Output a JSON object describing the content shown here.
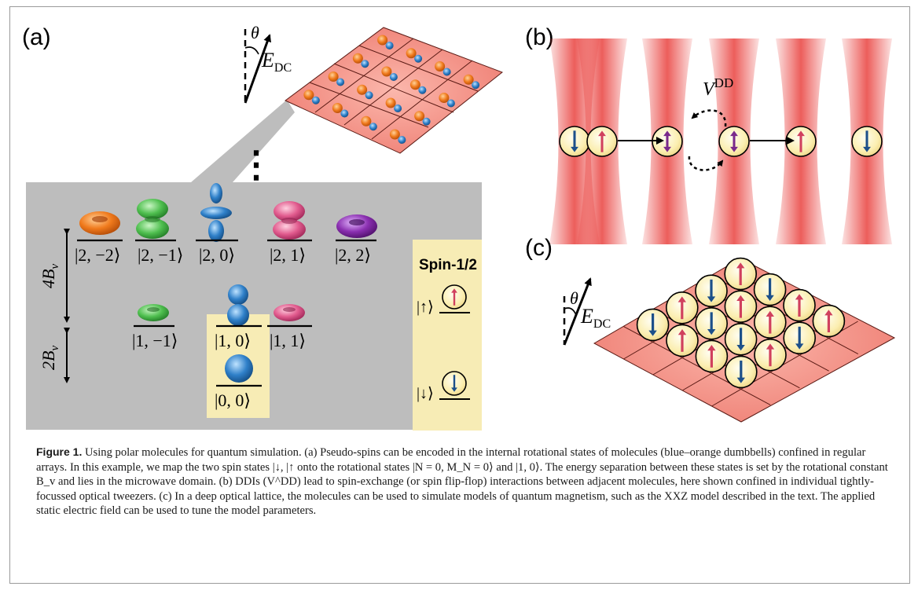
{
  "panels": {
    "a_label": "(a)",
    "b_label": "(b)",
    "c_label": "(c)"
  },
  "field": {
    "angle_symbol": "θ",
    "field_symbol": "E",
    "field_subscript": "DC"
  },
  "energy_levels": {
    "ellipsis": "⋮",
    "gap_upper": "4B",
    "gap_lower": "2B",
    "gap_subscript": "v",
    "n2_states": [
      "|2, −2⟩",
      "|2, −1⟩",
      "|2, 0⟩",
      "|2, 1⟩",
      "|2, 2⟩"
    ],
    "n1_states": [
      "|1, −1⟩",
      "|1, 0⟩",
      "|1, 1⟩"
    ],
    "n0_states": [
      "|0, 0⟩"
    ]
  },
  "spin_box": {
    "title": "Spin-1/2",
    "up_label": "|↑⟩",
    "down_label": "|↓⟩"
  },
  "interaction": {
    "symbol": "V",
    "superscript": "DD"
  },
  "colors": {
    "spin_up": "#d0405e",
    "spin_down": "#1c4f8a",
    "flip": "#7a2a8c",
    "sphere": "#fbeeb0",
    "highlight": "#f7ecb5",
    "shade": "#bdbdbd",
    "lattice": "#f08a84",
    "beam": "#e9413e",
    "orange": "#f07a1c",
    "green": "#4fbf4f",
    "blue": "#2f80c9",
    "pink": "#e15b8e",
    "purple": "#8a2fb0"
  },
  "caption": {
    "label": "Figure 1.",
    "text": "Using polar molecules for quantum simulation. (a) Pseudo-spins can be encoded in the internal rotational states of molecules (blue–orange dumbbells) confined in regular arrays. In this example, we map the two spin states |↓, |↑ onto the rotational states |N = 0, M_N = 0⟩ and |1, 0⟩. The energy separation between these states is set by the rotational constant B_v and lies in the microwave domain. (b) DDIs (V^DD) lead to spin-exchange (or spin flip-flop) interactions between adjacent molecules, here shown confined in individual tightly-focussed optical tweezers. (c) In a deep optical lattice, the molecules can be used to simulate models of quantum magnetism, such as the XXZ model described in the text. The applied static electric field can be used to tune the model parameters."
  }
}
